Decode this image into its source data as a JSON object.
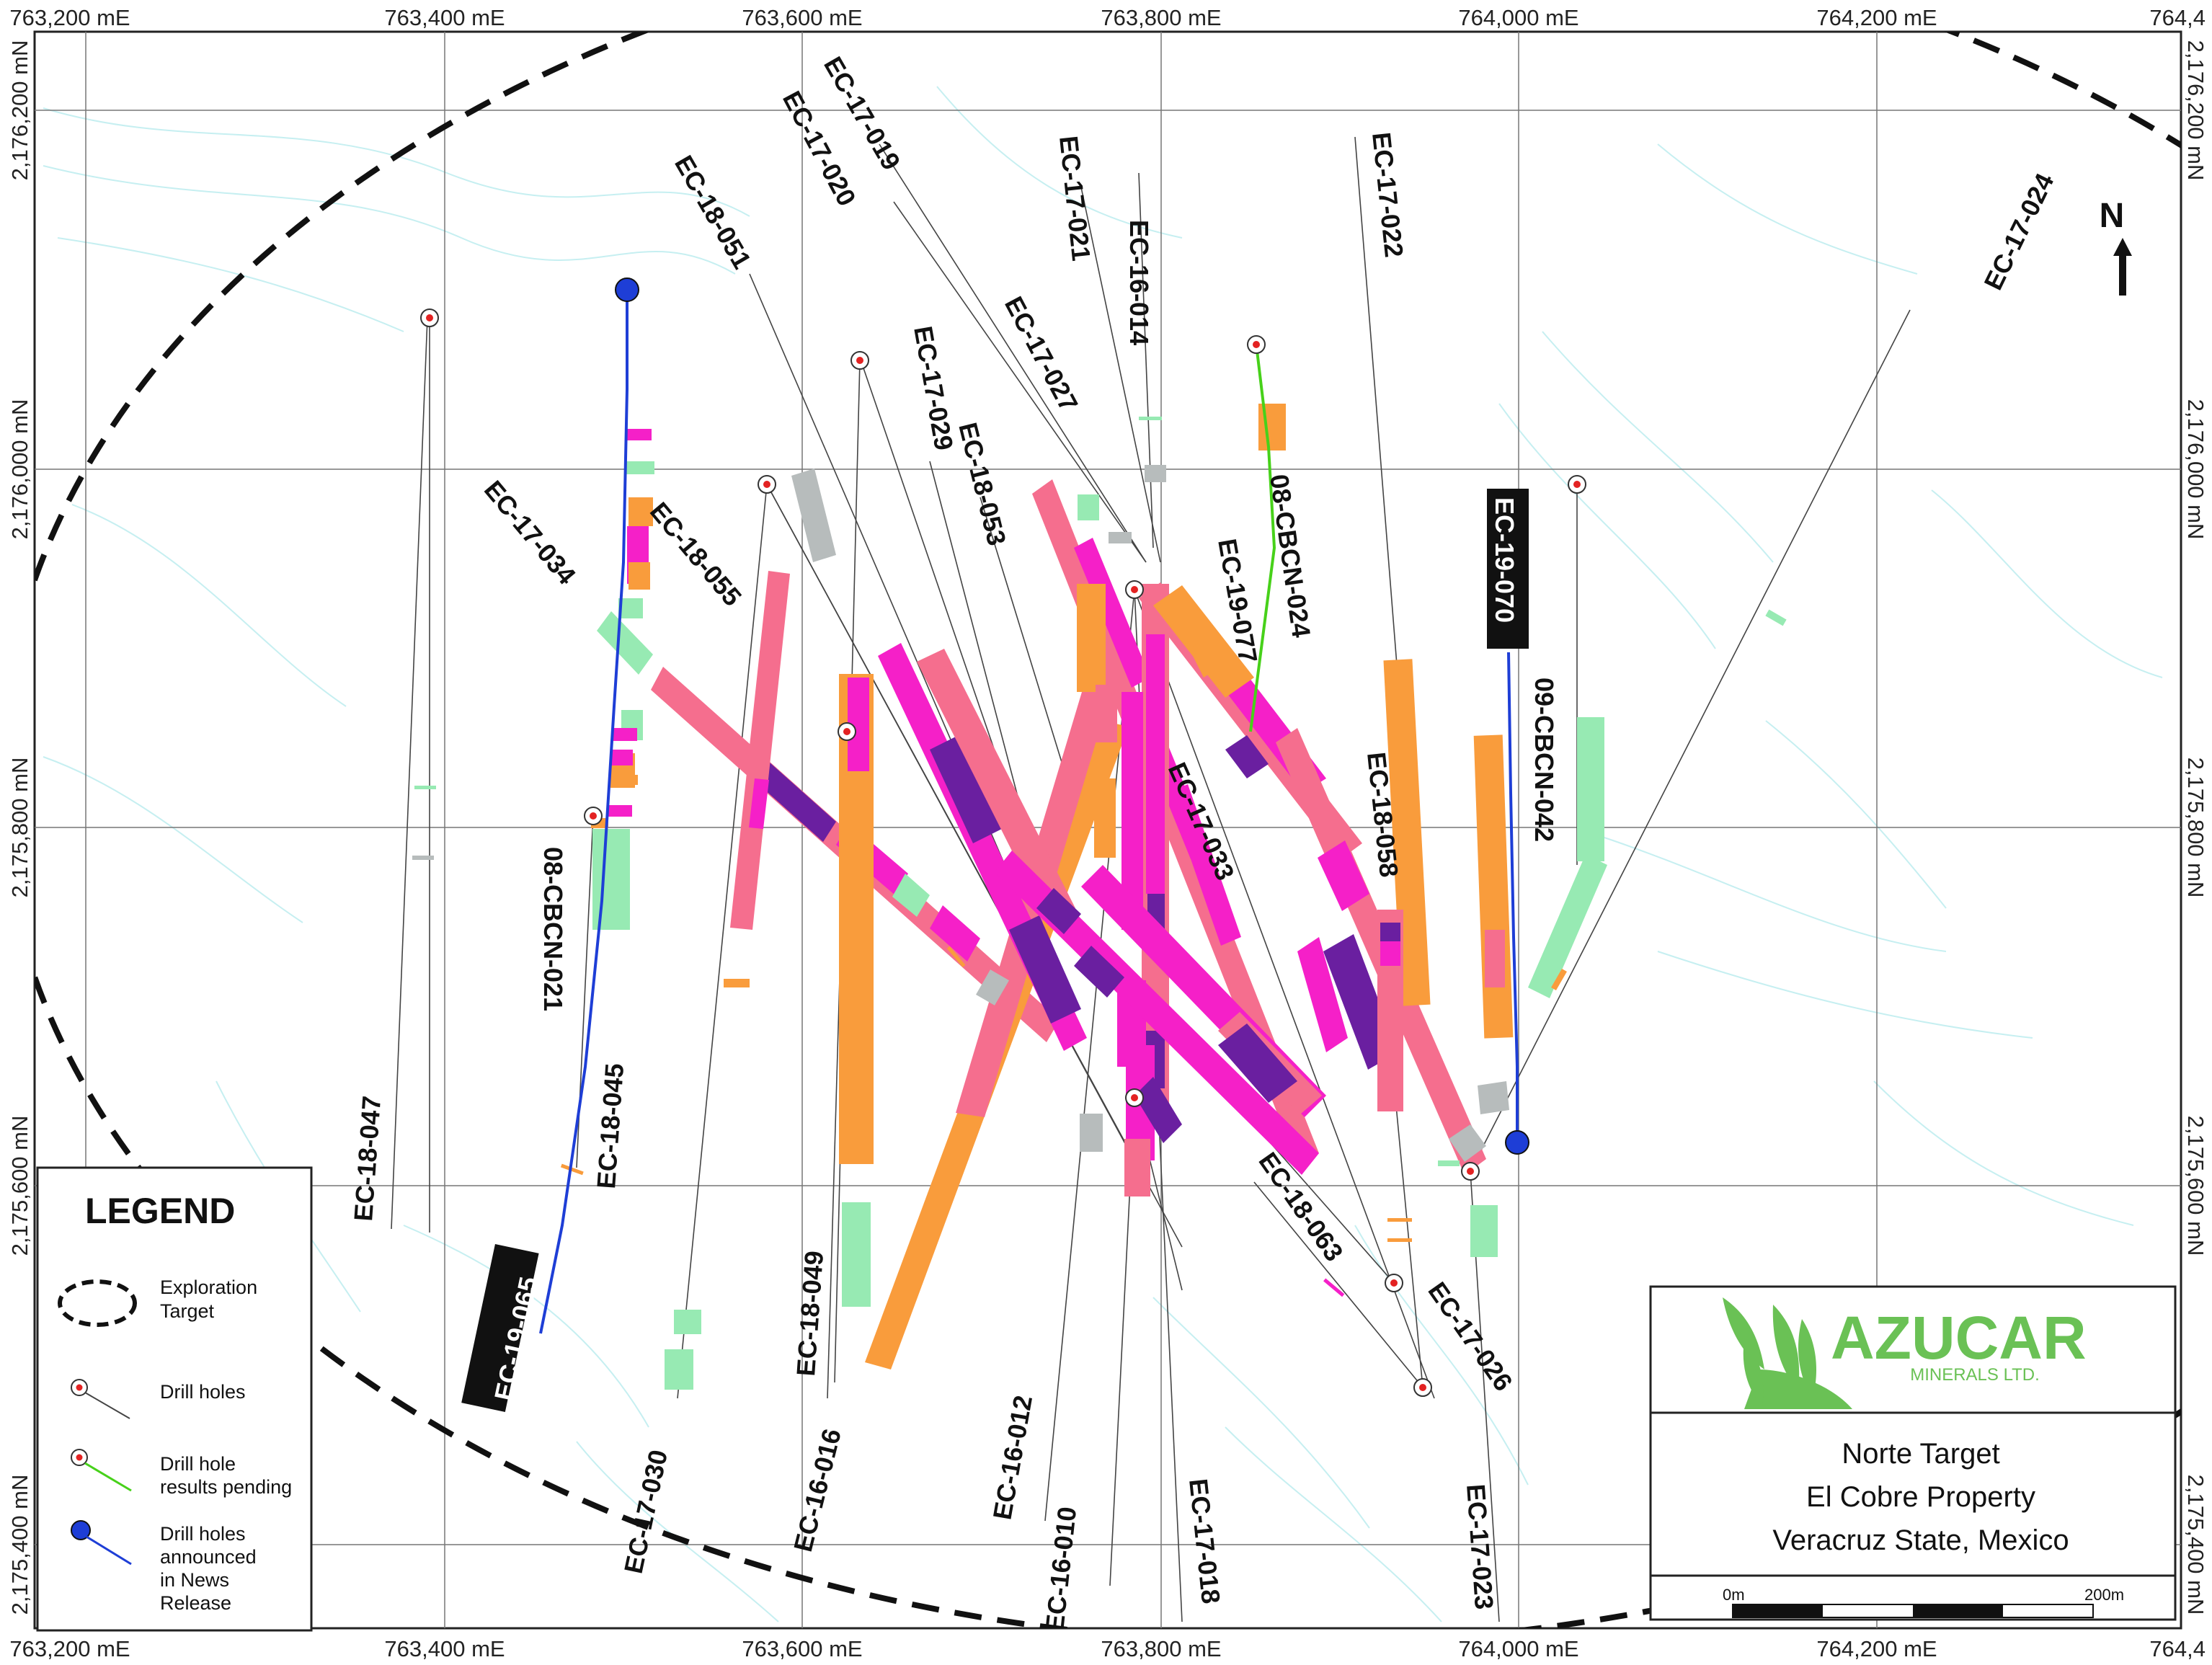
{
  "map": {
    "easting_labels": [
      "763,200 mE",
      "763,400 mE",
      "763,600 mE",
      "763,800 mE",
      "764,000 mE",
      "764,200 mE",
      "764,4"
    ],
    "northing_labels": [
      "2,176,200 mN",
      "2,176,000 mN",
      "2,175,800 mN",
      "2,175,600 mN",
      "2,175,400 mN"
    ],
    "north_label": "N",
    "colors": {
      "orange": "#f99c3c",
      "salmon": "#f56e8e",
      "magenta": "#f520c8",
      "purple": "#6a1fa0",
      "green_light": "#97eab3",
      "grey": "#b7bcbc",
      "announced": "#1e3ed6",
      "pending": "#47d11a",
      "collar_red": "#e32222",
      "contour": "#bfeef0",
      "target_dash": "#111111"
    }
  },
  "drill_holes": {
    "ec17034": "EC-17-034",
    "ec18055": "EC-18-055",
    "ec18051": "EC-18-051",
    "ec17020": "EC-17-020",
    "ec17019": "EC-17-019",
    "ec17021": "EC-17-021",
    "ec16014": "EC-16-014",
    "ec17022": "EC-17-022",
    "ec17027": "EC-17-027",
    "ec17029": "EC-17-029",
    "ec18053": "EC-18-053",
    "cbcn024": "08-CBCN-024",
    "ec19077": "EC-19-077",
    "ec19070": "EC-19-070",
    "cbcn042": "09-CBCN-042",
    "ec17024": "EC-17-024",
    "cbcn021": "08-CBCN-021",
    "ec18045": "EC-18-045",
    "ec18047": "EC-18-047",
    "ec19065": "EC-19-065",
    "ec17033": "EC-17-033",
    "ec18058": "EC-18-058",
    "ec18063": "EC-18-063",
    "ec17026": "EC-17-026",
    "ec18049": "EC-18-049",
    "ec17030": "EC-17-030",
    "ec16016": "EC-16-016",
    "ec16012": "EC-16-012",
    "ec16010": "EC-16-010",
    "ec17018": "EC-17-018",
    "ec17023": "EC-17-023"
  },
  "legend": {
    "title": "LEGEND",
    "items": [
      {
        "line1": "Exploration",
        "line2": "Target",
        "line3": "",
        "line4": ""
      },
      {
        "line1": "Drill holes",
        "line2": "",
        "line3": "",
        "line4": ""
      },
      {
        "line1": "Drill hole",
        "line2": "results pending",
        "line3": "",
        "line4": ""
      },
      {
        "line1": "Drill holes",
        "line2": "announced",
        "line3": "in News",
        "line4": "Release"
      }
    ]
  },
  "info": {
    "company": "AZUCAR",
    "company_sub": "MINERALS LTD.",
    "line1": "Norte Target",
    "line2": "El Cobre Property",
    "line3": "Veracruz State, Mexico",
    "scale_start": "0m",
    "scale_end": "200m"
  }
}
